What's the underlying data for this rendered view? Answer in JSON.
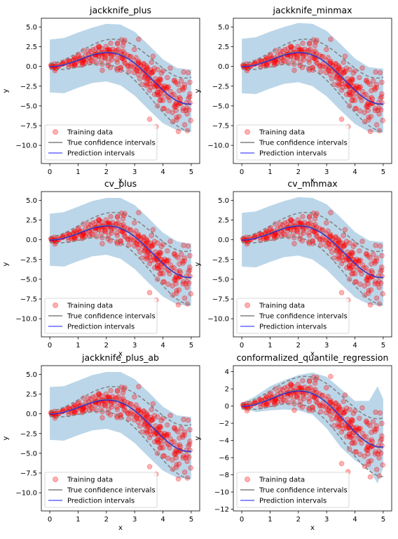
{
  "figure": {
    "background": "#ffffff"
  },
  "legend_labels": [
    "Training data",
    "True confidence intervals",
    "Prediction intervals"
  ],
  "colors": {
    "points": "#ff0000",
    "true_interval": "#808080",
    "prediction_line": "#0000ff",
    "band": "#1f77b4"
  },
  "chart_data": [
    {
      "type": "scatter",
      "title": "jackknife_plus",
      "xlabel": "x",
      "ylabel": "y",
      "xlim": [
        -0.3,
        5.3
      ],
      "ylim": [
        -12.3,
        6.1
      ],
      "xticks": [
        0,
        1,
        2,
        3,
        4,
        5
      ],
      "xtick_labels": [
        "0",
        "1",
        "2",
        "3",
        "4",
        "5"
      ],
      "yticks": [
        5.0,
        2.5,
        0.0,
        -2.5,
        -5.0,
        -7.5,
        -10.0
      ],
      "ytick_labels": [
        "5.0",
        "2.5",
        "0.0",
        "−2.5",
        "−5.0",
        "−7.5",
        "−10.0"
      ],
      "band": {
        "lower": [
          [
            0,
            -3.3
          ],
          [
            0.5,
            -3.4
          ],
          [
            1,
            -2.7
          ],
          [
            1.5,
            -2.1
          ],
          [
            2,
            -1.9
          ],
          [
            2.5,
            -2.4
          ],
          [
            3,
            -3.7
          ],
          [
            3.5,
            -5.5
          ],
          [
            4,
            -7.2
          ],
          [
            4.5,
            -8.1
          ],
          [
            5,
            -8.3
          ]
        ],
        "upper": [
          [
            0,
            3.4
          ],
          [
            0.5,
            3.6
          ],
          [
            1,
            4.3
          ],
          [
            1.5,
            4.9
          ],
          [
            2,
            5.4
          ],
          [
            2.5,
            5.3
          ],
          [
            3,
            4.4
          ],
          [
            3.5,
            2.7
          ],
          [
            4,
            0.9
          ],
          [
            4.5,
            -0.2
          ],
          [
            5,
            -0.4
          ]
        ]
      },
      "legend_placement": "lower-left",
      "grid": false
    },
    {
      "type": "scatter",
      "title": "jackknife_minmax",
      "xlabel": "x",
      "ylabel": "y",
      "xlim": [
        -0.3,
        5.3
      ],
      "ylim": [
        -12.3,
        6.1
      ],
      "xticks": [
        0,
        1,
        2,
        3,
        4,
        5
      ],
      "xtick_labels": [
        "0",
        "1",
        "2",
        "3",
        "4",
        "5"
      ],
      "yticks": [
        5.0,
        2.5,
        0.0,
        -2.5,
        -5.0,
        -7.5,
        -10.0
      ],
      "ytick_labels": [
        "5.0",
        "2.5",
        "0.0",
        "−2.5",
        "−5.0",
        "−7.5",
        "−10.0"
      ],
      "band": {
        "lower": [
          [
            0,
            -3.4
          ],
          [
            0.5,
            -3.5
          ],
          [
            1,
            -2.8
          ],
          [
            1.5,
            -2.2
          ],
          [
            2,
            -2.0
          ],
          [
            2.5,
            -2.5
          ],
          [
            3,
            -3.8
          ],
          [
            3.5,
            -5.6
          ],
          [
            4,
            -7.3
          ],
          [
            4.5,
            -8.3
          ],
          [
            5,
            -8.4
          ]
        ],
        "upper": [
          [
            0,
            3.5
          ],
          [
            0.5,
            3.7
          ],
          [
            1,
            4.4
          ],
          [
            1.5,
            5.0
          ],
          [
            2,
            5.5
          ],
          [
            2.5,
            5.4
          ],
          [
            3,
            4.5
          ],
          [
            3.5,
            2.8
          ],
          [
            4,
            1.0
          ],
          [
            4.5,
            -0.1
          ],
          [
            5,
            -0.3
          ]
        ]
      },
      "legend_placement": "lower-left",
      "grid": false
    },
    {
      "type": "scatter",
      "title": "cv_plus",
      "xlabel": "x",
      "ylabel": "y",
      "xlim": [
        -0.3,
        5.3
      ],
      "ylim": [
        -12.3,
        6.1
      ],
      "xticks": [
        0,
        1,
        2,
        3,
        4,
        5
      ],
      "xtick_labels": [
        "0",
        "1",
        "2",
        "3",
        "4",
        "5"
      ],
      "yticks": [
        5.0,
        2.5,
        0.0,
        -2.5,
        -5.0,
        -7.5,
        -10.0
      ],
      "ytick_labels": [
        "5.0",
        "2.5",
        "0.0",
        "−2.5",
        "−5.0",
        "−7.5",
        "−10.0"
      ],
      "band": {
        "lower": [
          [
            0,
            -3.3
          ],
          [
            0.5,
            -3.4
          ],
          [
            1,
            -2.7
          ],
          [
            1.5,
            -2.1
          ],
          [
            2,
            -1.9
          ],
          [
            2.5,
            -2.4
          ],
          [
            3,
            -3.7
          ],
          [
            3.5,
            -5.5
          ],
          [
            4,
            -7.2
          ],
          [
            4.5,
            -8.2
          ],
          [
            5,
            -8.4
          ]
        ],
        "upper": [
          [
            0,
            3.3
          ],
          [
            0.5,
            3.5
          ],
          [
            1,
            4.2
          ],
          [
            1.5,
            4.9
          ],
          [
            2,
            5.3
          ],
          [
            2.5,
            5.3
          ],
          [
            3,
            4.4
          ],
          [
            3.5,
            2.7
          ],
          [
            4,
            0.9
          ],
          [
            4.5,
            -0.2
          ],
          [
            5,
            -0.5
          ]
        ]
      },
      "legend_placement": "lower-left",
      "grid": false
    },
    {
      "type": "scatter",
      "title": "cv_minmax",
      "xlabel": "x",
      "ylabel": "y",
      "xlim": [
        -0.3,
        5.3
      ],
      "ylim": [
        -12.3,
        6.1
      ],
      "xticks": [
        0,
        1,
        2,
        3,
        4,
        5
      ],
      "xtick_labels": [
        "0",
        "1",
        "2",
        "3",
        "4",
        "5"
      ],
      "yticks": [
        5.0,
        2.5,
        0.0,
        -2.5,
        -5.0,
        -7.5,
        -10.0
      ],
      "ytick_labels": [
        "5.0",
        "2.5",
        "0.0",
        "−2.5",
        "−5.0",
        "−7.5",
        "−10.0"
      ],
      "band": {
        "lower": [
          [
            0,
            -3.4
          ],
          [
            0.5,
            -3.5
          ],
          [
            1,
            -2.8
          ],
          [
            1.5,
            -2.2
          ],
          [
            2,
            -2.0
          ],
          [
            2.5,
            -2.5
          ],
          [
            3,
            -3.8
          ],
          [
            3.5,
            -5.6
          ],
          [
            4,
            -7.3
          ],
          [
            4.5,
            -8.2
          ],
          [
            5,
            -8.4
          ]
        ],
        "upper": [
          [
            0,
            3.4
          ],
          [
            0.5,
            3.6
          ],
          [
            1,
            4.3
          ],
          [
            1.5,
            4.9
          ],
          [
            2,
            5.4
          ],
          [
            2.5,
            5.3
          ],
          [
            3,
            4.5
          ],
          [
            3.5,
            2.8
          ],
          [
            4,
            1.0
          ],
          [
            4.5,
            -0.1
          ],
          [
            5,
            -0.3
          ]
        ]
      },
      "legend_placement": "lower-left",
      "grid": false
    },
    {
      "type": "scatter",
      "title": "jackknife_plus_ab",
      "xlabel": "x",
      "ylabel": "y",
      "xlim": [
        -0.3,
        5.3
      ],
      "ylim": [
        -12.3,
        6.1
      ],
      "xticks": [
        0,
        1,
        2,
        3,
        4,
        5
      ],
      "xtick_labels": [
        "0",
        "1",
        "2",
        "3",
        "4",
        "5"
      ],
      "yticks": [
        5.0,
        2.5,
        0.0,
        -2.5,
        -5.0,
        -7.5,
        -10.0
      ],
      "ytick_labels": [
        "5.0",
        "2.5",
        "0.0",
        "−2.5",
        "−5.0",
        "−7.5",
        "−10.0"
      ],
      "band": {
        "lower": [
          [
            0,
            -3.3
          ],
          [
            0.5,
            -3.4
          ],
          [
            1,
            -2.7
          ],
          [
            1.5,
            -2.1
          ],
          [
            2,
            -1.9
          ],
          [
            2.5,
            -2.4
          ],
          [
            3,
            -3.7
          ],
          [
            3.5,
            -5.5
          ],
          [
            4,
            -7.2
          ],
          [
            4.5,
            -8.1
          ],
          [
            5,
            -8.3
          ]
        ],
        "upper": [
          [
            0,
            3.4
          ],
          [
            0.5,
            3.5
          ],
          [
            1,
            4.2
          ],
          [
            1.5,
            4.9
          ],
          [
            2,
            5.3
          ],
          [
            2.5,
            5.3
          ],
          [
            3,
            4.4
          ],
          [
            3.5,
            2.7
          ],
          [
            4,
            0.9
          ],
          [
            4.5,
            -0.2
          ],
          [
            5,
            -0.4
          ]
        ]
      },
      "legend_placement": "lower-left",
      "grid": false
    },
    {
      "type": "scatter",
      "title": "conformalized_quantile_regression",
      "xlabel": "x",
      "ylabel": "y",
      "xlim": [
        -0.3,
        5.3
      ],
      "ylim": [
        -12.2,
        4.7
      ],
      "xticks": [
        0,
        1,
        2,
        3,
        4,
        5
      ],
      "xtick_labels": [
        "0",
        "1",
        "2",
        "3",
        "4",
        "5"
      ],
      "yticks": [
        4,
        2,
        0,
        -2,
        -4,
        -6,
        -8,
        -10,
        -12
      ],
      "ytick_labels": [
        "4",
        "2",
        "0",
        "−2",
        "−4",
        "−6",
        "−8",
        "−10",
        "−12"
      ],
      "band": {
        "lower": [
          [
            0,
            -0.2
          ],
          [
            0.5,
            -0.7
          ],
          [
            1,
            -0.5
          ],
          [
            1.5,
            -0.4
          ],
          [
            2,
            -0.5
          ],
          [
            2.5,
            -1.0
          ],
          [
            3,
            -2.6
          ],
          [
            3.5,
            -4.8
          ],
          [
            4,
            -6.3
          ],
          [
            4.5,
            -7.4
          ],
          [
            4.8,
            -9.0
          ],
          [
            5,
            -7.2
          ]
        ],
        "upper": [
          [
            0,
            0.3
          ],
          [
            0.5,
            1.2
          ],
          [
            1,
            2.3
          ],
          [
            1.5,
            3.0
          ],
          [
            2,
            3.6
          ],
          [
            2.5,
            3.9
          ],
          [
            3,
            3.4
          ],
          [
            3.5,
            2.0
          ],
          [
            4,
            0.6
          ],
          [
            4.5,
            0.6
          ],
          [
            4.8,
            2.3
          ],
          [
            5,
            0.8
          ]
        ]
      },
      "legend_placement": "lower-left",
      "grid": false
    }
  ]
}
